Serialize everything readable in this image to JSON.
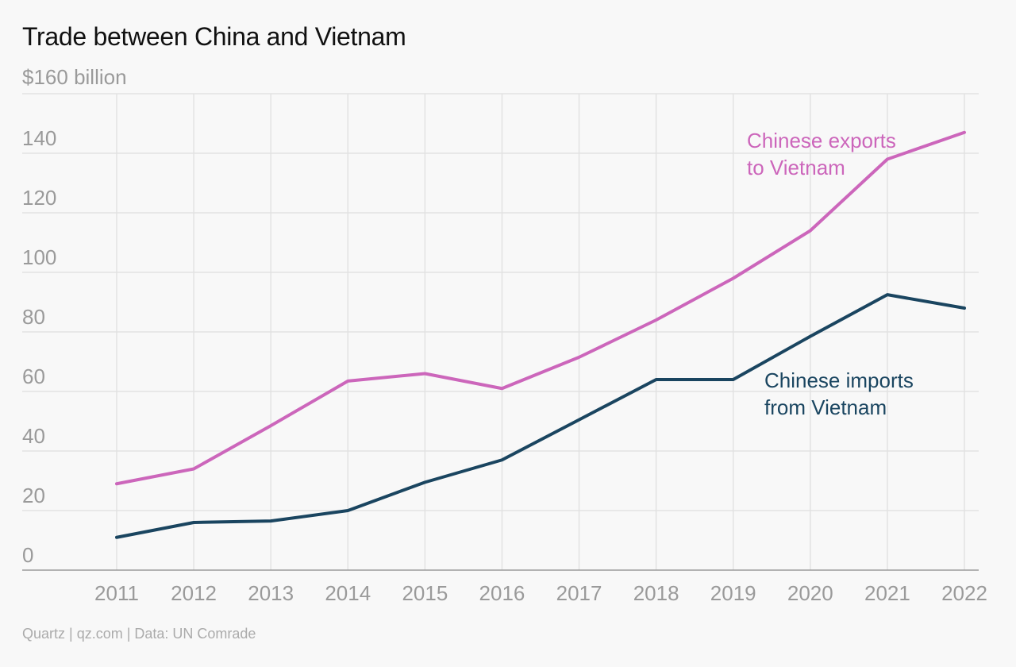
{
  "title": "Trade between China and Vietnam",
  "unit_label": "$160 billion",
  "footer": "Quartz | qz.com | Data: UN Comrade",
  "colors": {
    "exports": "#cc66bb",
    "imports": "#1a4560"
  },
  "chart_data": {
    "type": "line",
    "x": [
      2011,
      2012,
      2013,
      2014,
      2015,
      2016,
      2017,
      2018,
      2019,
      2020,
      2021,
      2022
    ],
    "ylim": [
      0,
      160
    ],
    "yticks": [
      0,
      20,
      40,
      60,
      80,
      100,
      120,
      140
    ],
    "grid": true,
    "series": [
      {
        "name": "Chinese exports to Vietnam",
        "label_lines": [
          "Chinese exports",
          "to Vietnam"
        ],
        "color_key": "exports",
        "values": [
          29,
          34,
          48.5,
          63.5,
          66,
          61,
          71.5,
          84,
          98,
          114,
          138,
          147
        ]
      },
      {
        "name": "Chinese imports from Vietnam",
        "label_lines": [
          "Chinese imports",
          "from Vietnam"
        ],
        "color_key": "imports",
        "values": [
          11,
          16,
          16.5,
          20,
          29.5,
          37,
          50.5,
          64,
          64,
          78.5,
          92.5,
          88
        ]
      }
    ]
  }
}
